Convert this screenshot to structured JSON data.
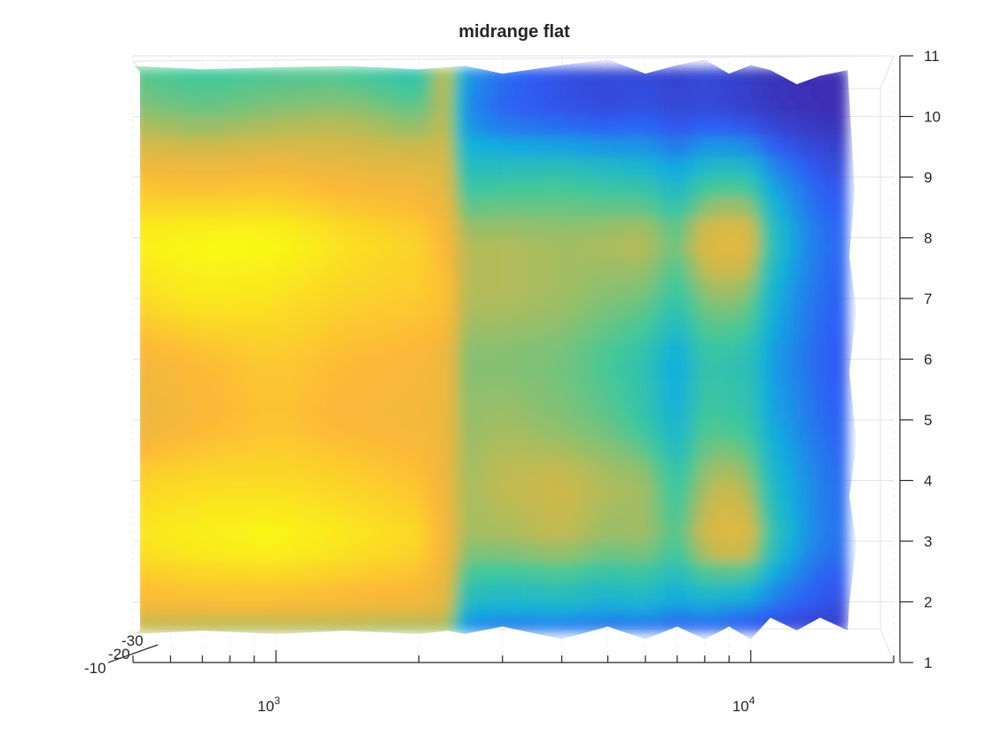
{
  "chart_data": {
    "type": "surface",
    "title": "midrange flat",
    "xlabel": "",
    "ylabel": "",
    "zlabel": "",
    "x_scale": "log",
    "x_range": [
      500,
      20000
    ],
    "x_tick_labels": [
      {
        "base": "10",
        "exp": "3",
        "value": 1000
      },
      {
        "base": "10",
        "exp": "4",
        "value": 10000
      }
    ],
    "y_range": [
      1,
      11
    ],
    "y_ticks": [
      1,
      2,
      3,
      4,
      5,
      6,
      7,
      8,
      9,
      10,
      11
    ],
    "z_tick_labels": [
      "-10",
      "-20",
      "-30"
    ],
    "grid": true,
    "view": "top",
    "colormap": "parula",
    "colormap_stops": [
      "#3e26a8",
      "#2e5ef5",
      "#12b0dd",
      "#41c89a",
      "#c9b94d",
      "#fdb838",
      "#f9fb15"
    ],
    "surface_x_frequencies": [
      500,
      700,
      1000,
      1400,
      2000,
      2300,
      2500,
      3000,
      4000,
      5000,
      6000,
      7000,
      8000,
      9000,
      10000,
      11000,
      12500,
      14000,
      16000
    ],
    "surface_y_rows": [
      1.5,
      2,
      3,
      4,
      5,
      6,
      7,
      8,
      9,
      10,
      10.8
    ],
    "surface_levels": [
      [
        0.62,
        0.6,
        0.6,
        0.6,
        0.58,
        0.62,
        0.22,
        0.2,
        0.2,
        0.18,
        0.18,
        0.16,
        0.16,
        0.14,
        0.12,
        0.1,
        0.08,
        0.06,
        0.06
      ],
      [
        0.82,
        0.84,
        0.84,
        0.82,
        0.8,
        0.74,
        0.4,
        0.36,
        0.38,
        0.34,
        0.36,
        0.3,
        0.34,
        0.3,
        0.28,
        0.22,
        0.18,
        0.14,
        0.12
      ],
      [
        0.95,
        0.98,
        1.0,
        0.96,
        0.92,
        0.8,
        0.62,
        0.62,
        0.66,
        0.6,
        0.62,
        0.52,
        0.7,
        0.76,
        0.74,
        0.48,
        0.32,
        0.24,
        0.2
      ],
      [
        0.9,
        0.92,
        0.92,
        0.9,
        0.86,
        0.78,
        0.62,
        0.66,
        0.68,
        0.64,
        0.62,
        0.46,
        0.62,
        0.66,
        0.6,
        0.4,
        0.3,
        0.24,
        0.18
      ],
      [
        0.76,
        0.82,
        0.86,
        0.82,
        0.8,
        0.78,
        0.6,
        0.62,
        0.58,
        0.54,
        0.46,
        0.34,
        0.5,
        0.48,
        0.46,
        0.32,
        0.26,
        0.2,
        0.16
      ],
      [
        0.8,
        0.84,
        0.88,
        0.84,
        0.82,
        0.78,
        0.58,
        0.58,
        0.56,
        0.5,
        0.44,
        0.3,
        0.46,
        0.44,
        0.42,
        0.3,
        0.24,
        0.18,
        0.14
      ],
      [
        0.92,
        0.96,
        0.94,
        0.9,
        0.88,
        0.86,
        0.64,
        0.64,
        0.62,
        0.58,
        0.56,
        0.46,
        0.58,
        0.6,
        0.56,
        0.36,
        0.26,
        0.2,
        0.16
      ],
      [
        0.98,
        1.0,
        1.0,
        0.94,
        0.9,
        0.82,
        0.64,
        0.64,
        0.62,
        0.64,
        0.66,
        0.56,
        0.74,
        0.78,
        0.76,
        0.46,
        0.3,
        0.22,
        0.18
      ],
      [
        0.84,
        0.82,
        0.84,
        0.8,
        0.78,
        0.74,
        0.44,
        0.46,
        0.48,
        0.44,
        0.42,
        0.34,
        0.44,
        0.46,
        0.44,
        0.3,
        0.22,
        0.16,
        0.12
      ],
      [
        0.6,
        0.56,
        0.6,
        0.62,
        0.56,
        0.66,
        0.26,
        0.18,
        0.14,
        0.12,
        0.14,
        0.1,
        0.12,
        0.1,
        0.08,
        0.06,
        0.04,
        0.03,
        0.02
      ],
      [
        0.52,
        0.48,
        0.5,
        0.5,
        0.42,
        0.7,
        0.3,
        0.2,
        0.12,
        0.1,
        0.1,
        0.08,
        0.1,
        0.08,
        0.06,
        0.04,
        0.03,
        0.02,
        0.02
      ]
    ]
  }
}
